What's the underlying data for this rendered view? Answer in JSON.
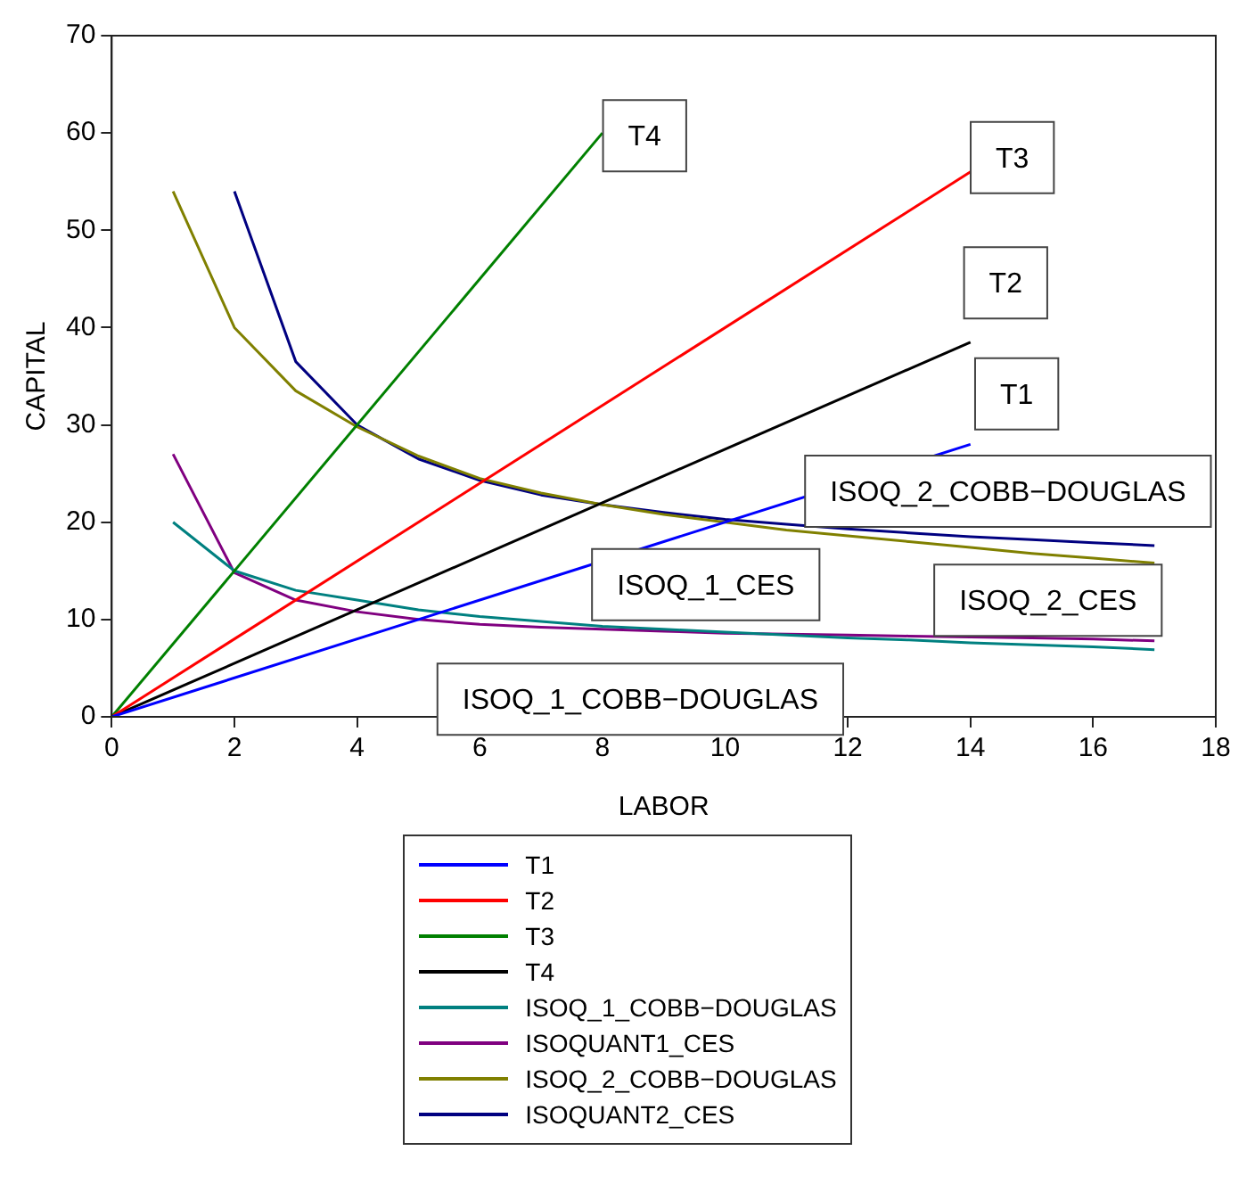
{
  "chart_data": {
    "type": "line",
    "xlabel": "LABOR",
    "ylabel": "CAPITAL",
    "xlim": [
      0,
      18
    ],
    "xticks": [
      0,
      2,
      4,
      6,
      8,
      10,
      12,
      14,
      16,
      18
    ],
    "ylim": [
      0,
      70
    ],
    "yticks": [
      0,
      10,
      20,
      30,
      40,
      50,
      60,
      70
    ],
    "grid": false,
    "legend": "bottom",
    "marker": "none",
    "line_style": "solid",
    "series": [
      {
        "name": "T1",
        "color": "#0000ff",
        "x": [
          0,
          14
        ],
        "values": [
          0,
          28
        ]
      },
      {
        "name": "T2",
        "color": "#ff0000",
        "x": [
          0,
          14
        ],
        "values": [
          0,
          56
        ]
      },
      {
        "name": "T3",
        "color": "#008000",
        "x": [
          0,
          8
        ],
        "values": [
          0,
          60
        ]
      },
      {
        "name": "T4",
        "color": "#000000",
        "x": [
          0,
          14
        ],
        "values": [
          0,
          38.5
        ]
      },
      {
        "name": "ISOQ_1_COBB−DOUGLAS",
        "color": "#008080",
        "x": [
          1,
          2,
          3,
          4,
          5,
          6,
          7,
          8,
          9,
          10,
          11,
          12,
          13,
          14,
          15,
          16,
          17
        ],
        "values": [
          20,
          15,
          13,
          12,
          11,
          10.3,
          9.8,
          9.3,
          9,
          8.7,
          8.4,
          8.1,
          7.9,
          7.6,
          7.4,
          7.2,
          6.9
        ]
      },
      {
        "name": "ISOQUANT1_CES",
        "color": "#800080",
        "x": [
          1,
          2,
          3,
          4,
          5,
          6,
          7,
          8,
          9,
          10,
          11,
          12,
          13,
          14,
          15,
          16,
          17
        ],
        "values": [
          27,
          14.8,
          12,
          10.8,
          10,
          9.5,
          9.2,
          9,
          8.8,
          8.6,
          8.5,
          8.4,
          8.3,
          8.2,
          8.1,
          8,
          7.8
        ]
      },
      {
        "name": "ISOQ_2_COBB−DOUGLAS",
        "color": "#808000",
        "x": [
          1,
          2,
          3,
          4,
          5,
          6,
          7,
          8,
          9,
          10,
          11,
          12,
          13,
          14,
          15,
          16,
          17
        ],
        "values": [
          54,
          40,
          33.5,
          29.8,
          26.8,
          24.5,
          23,
          21.8,
          20.8,
          20,
          19.2,
          18.6,
          18,
          17.4,
          16.8,
          16.3,
          15.8
        ]
      },
      {
        "name": "ISOQUANT2_CES",
        "color": "#000080",
        "x": [
          2,
          3,
          4,
          5,
          6,
          7,
          8,
          9,
          10,
          11,
          12,
          13,
          14,
          15,
          16,
          17
        ],
        "values": [
          54,
          36.5,
          30,
          26.5,
          24.3,
          22.8,
          21.8,
          21,
          20.3,
          19.8,
          19.3,
          18.9,
          18.5,
          18.2,
          17.9,
          17.6
        ]
      }
    ],
    "annotations": [
      "T4",
      "T3",
      "T2",
      "T1",
      "ISOQ_2_COBB−DOUGLAS",
      "ISOQ_1_CES",
      "ISOQ_2_CES",
      "ISOQ_1_COBB−DOUGLAS"
    ]
  }
}
